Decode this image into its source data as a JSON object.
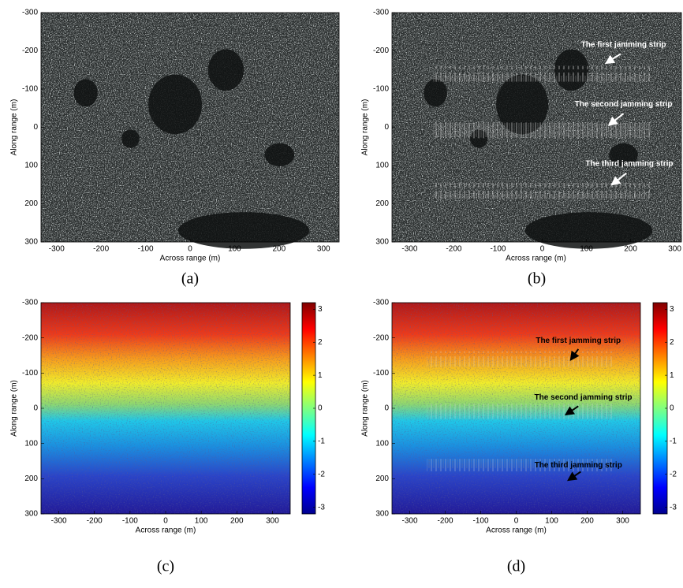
{
  "chart_data": [
    {
      "type": "image",
      "caption": "(a)",
      "xlabel": "Across range (m)",
      "ylabel": "Along range (m)",
      "xlim": [
        -335,
        335
      ],
      "ylim": [
        -300,
        300
      ],
      "yreverse": true,
      "colormap": "gray",
      "xticks": [
        -300,
        -200,
        -100,
        0,
        100,
        200,
        300
      ],
      "yticks": [
        -300,
        -200,
        -100,
        0,
        100,
        200,
        300
      ]
    },
    {
      "type": "image",
      "caption": "(b)",
      "xlabel": "Across range (m)",
      "ylabel": "Along range (m)",
      "xlim": [
        -340,
        315
      ],
      "ylim": [
        -300,
        300
      ],
      "yreverse": true,
      "colormap": "gray",
      "xticks": [
        -300,
        -200,
        -100,
        0,
        100,
        200,
        300
      ],
      "yticks": [
        -300,
        -200,
        -100,
        0,
        100,
        200,
        300
      ],
      "annotations": [
        "The first jamming strip",
        "The second jamming strip",
        "The third jamming strip"
      ]
    },
    {
      "type": "image",
      "caption": "(c)",
      "xlabel": "Across range (m)",
      "ylabel": "Along range (m)",
      "xlim": [
        -350,
        350
      ],
      "ylim": [
        -300,
        300
      ],
      "yreverse": true,
      "colormap": "jet",
      "xticks": [
        -300,
        -200,
        -100,
        0,
        100,
        200,
        300
      ],
      "yticks": [
        -300,
        -200,
        -100,
        0,
        100,
        200,
        300
      ],
      "clim": [
        -3.2,
        3.2
      ],
      "cticks": [
        -3,
        -2,
        -1,
        0,
        1,
        2,
        3
      ]
    },
    {
      "type": "image",
      "caption": "(d)",
      "xlabel": "Across range (m)",
      "ylabel": "Along range (m)",
      "xlim": [
        -350,
        350
      ],
      "ylim": [
        -300,
        300
      ],
      "yreverse": true,
      "colormap": "jet",
      "xticks": [
        -300,
        -200,
        -100,
        0,
        100,
        200,
        300
      ],
      "yticks": [
        -300,
        -200,
        -100,
        0,
        100,
        200,
        300
      ],
      "clim": [
        -3.2,
        3.2
      ],
      "cticks": [
        -3,
        -2,
        -1,
        0,
        1,
        2,
        3
      ],
      "annotations": [
        "The first jamming strip",
        "The second jamming strip",
        "The third jamming strip"
      ]
    }
  ]
}
